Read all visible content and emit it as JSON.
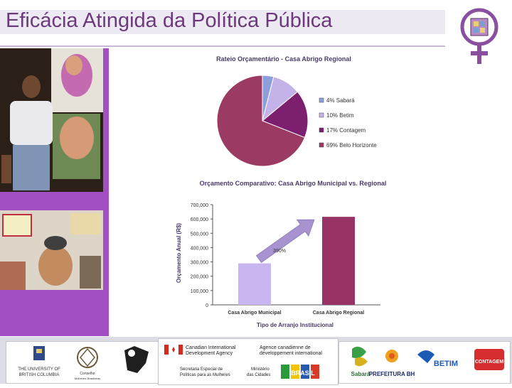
{
  "slide": {
    "title": "Eficácia Atingida da Política Pública"
  },
  "colors": {
    "title": "#6b3a7a",
    "accent_purple": "#a34fc4",
    "pie_bh": "#9b3a63",
    "pie_contagem": "#7b1f6e",
    "pie_betim": "#c4b3e8",
    "pie_sabara": "#8d9fda",
    "bar_municipal": "#c9b6f0",
    "bar_regional": "#993366",
    "arrow": "#a693cf"
  },
  "chart_data": [
    {
      "type": "pie",
      "title": "Rateio Orçamentário - Casa Abrigo Regional",
      "slices": [
        {
          "label": "4% Sabará",
          "value": 4,
          "color": "#8d9fda"
        },
        {
          "label": "10% Betim",
          "value": 10,
          "color": "#c4b3e8"
        },
        {
          "label": "17% Contagem",
          "value": 17,
          "color": "#7b1f6e"
        },
        {
          "label": "69% Belo Horizonte",
          "value": 69,
          "color": "#9b3a63"
        }
      ],
      "legend_position": "right"
    },
    {
      "type": "bar",
      "title": "Orçamento Comparativo: Casa Abrigo Municipal vs. Regional",
      "categories": [
        "Casa Abrigo Municipal",
        "Casa Abrigo Regional"
      ],
      "values": [
        290000,
        615000
      ],
      "colors": [
        "#c9b6f0",
        "#993366"
      ],
      "xlabel": "Tipo de Arranjo Institucional",
      "ylabel": "Orçamento Anual (R$)",
      "ylim": [
        0,
        700000
      ],
      "yticks": [
        "0",
        "100,000",
        "200,000",
        "300,000",
        "400,000",
        "500,000",
        "600,000",
        "700,000"
      ],
      "annotation": "390%",
      "grid": false
    }
  ],
  "footer": {
    "ubc_line1": "THE UNIVERSITY OF",
    "ubc_line2": "BRITISH COLUMBIA",
    "cnm_line1": "Conselho",
    "cnm_line2": "Mulheres Brasileiras",
    "cida_en1": "Canadian International",
    "cida_en2": "Development Agency",
    "cida_fr1": "Agence canadienne de",
    "cida_fr2": "développement international",
    "sep_line1": "Secretaria Especial de",
    "sep_line2": "Políticas para as Mulheres",
    "min_line1": "Ministério",
    "min_line2": "das Cidades",
    "brasil": "BRASIL",
    "sabara": "Sabará",
    "pbh": "PREFEITURA BH",
    "betim": "BETIM",
    "contagem": "CONTAGEM"
  }
}
